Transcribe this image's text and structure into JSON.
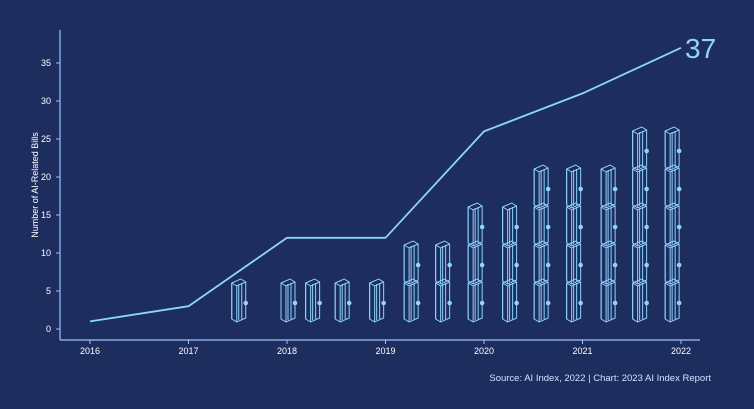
{
  "chart_data": {
    "type": "line",
    "x": [
      "2016",
      "2017",
      "2018",
      "2019",
      "2020",
      "2021",
      "2022"
    ],
    "values": [
      1,
      3,
      12,
      12,
      26,
      31,
      37
    ],
    "ylabel": "Number of AI-Related Bills",
    "xlabel": "",
    "ylim": [
      0,
      37
    ],
    "y_ticks": [
      "0",
      "5",
      "10",
      "15",
      "20",
      "25",
      "30",
      "35"
    ],
    "end_label": "37",
    "source": "Source: AI Index, 2022 | Chart: 2023 AI Index Report",
    "grid": false,
    "icon": "scroll-bill-icon",
    "icon_stacks": [
      {
        "x": "2017",
        "count": 1,
        "offset": 0.5
      },
      {
        "x": "2018",
        "count": 1,
        "offset": 0.0
      },
      {
        "x": "2018",
        "count": 1,
        "offset": 0.25
      },
      {
        "x": "2018",
        "count": 1,
        "offset": 0.55
      },
      {
        "x": "2018",
        "count": 1,
        "offset": 0.9
      },
      {
        "x": "2019",
        "count": 2,
        "offset": 0.25
      },
      {
        "x": "2019",
        "count": 2,
        "offset": 0.57
      },
      {
        "x": "2019",
        "count": 3,
        "offset": 0.9
      },
      {
        "x": "2020",
        "count": 3,
        "offset": 0.25
      },
      {
        "x": "2020",
        "count": 4,
        "offset": 0.57
      },
      {
        "x": "2020",
        "count": 4,
        "offset": 0.9
      },
      {
        "x": "2021",
        "count": 4,
        "offset": 0.25
      },
      {
        "x": "2021",
        "count": 5,
        "offset": 0.57
      },
      {
        "x": "2021",
        "count": 5,
        "offset": 0.9
      }
    ],
    "colors": {
      "background": "#1c2d5e",
      "line": "#8fd3ff",
      "axis": "#9cc3ff",
      "icon": "#8fd3ff"
    }
  }
}
